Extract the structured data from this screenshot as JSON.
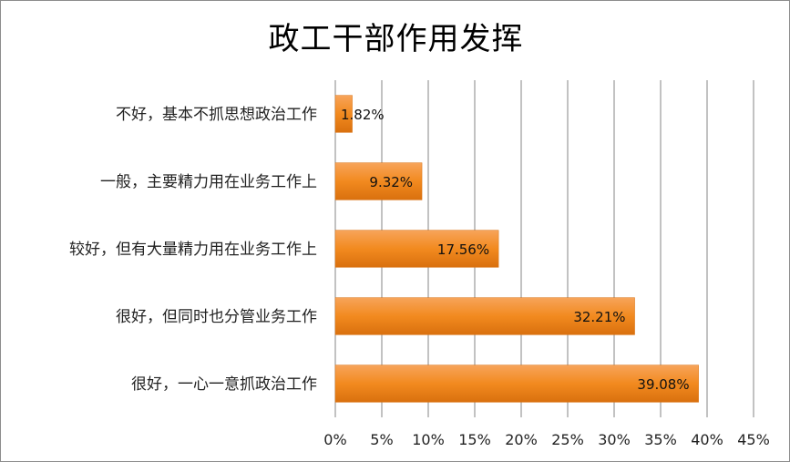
{
  "chart_data": {
    "type": "bar",
    "orientation": "horizontal",
    "title": "政工干部作用发挥",
    "categories": [
      "不好，基本不抓思想政治工作",
      "一般，主要精力用在业务工作上",
      "较好，但有大量精力用在业务工作上",
      "很好，但同时也分管业务工作",
      "很好，一心一意抓政治工作"
    ],
    "values": [
      1.82,
      9.32,
      17.56,
      32.21,
      39.08
    ],
    "data_labels": [
      "1.82%",
      "9.32%",
      "17.56%",
      "32.21%",
      "39.08%"
    ],
    "xticks": [
      "0%",
      "5%",
      "10%",
      "15%",
      "20%",
      "25%",
      "30%",
      "35%",
      "40%",
      "45%"
    ],
    "xlim": [
      0,
      45
    ],
    "grid": "vertical",
    "legend": "none",
    "colors": {
      "bar": "#f28a1f",
      "bar_light": "#f7a45a",
      "bar_dark": "#d9700e",
      "grid": "#868686"
    }
  }
}
